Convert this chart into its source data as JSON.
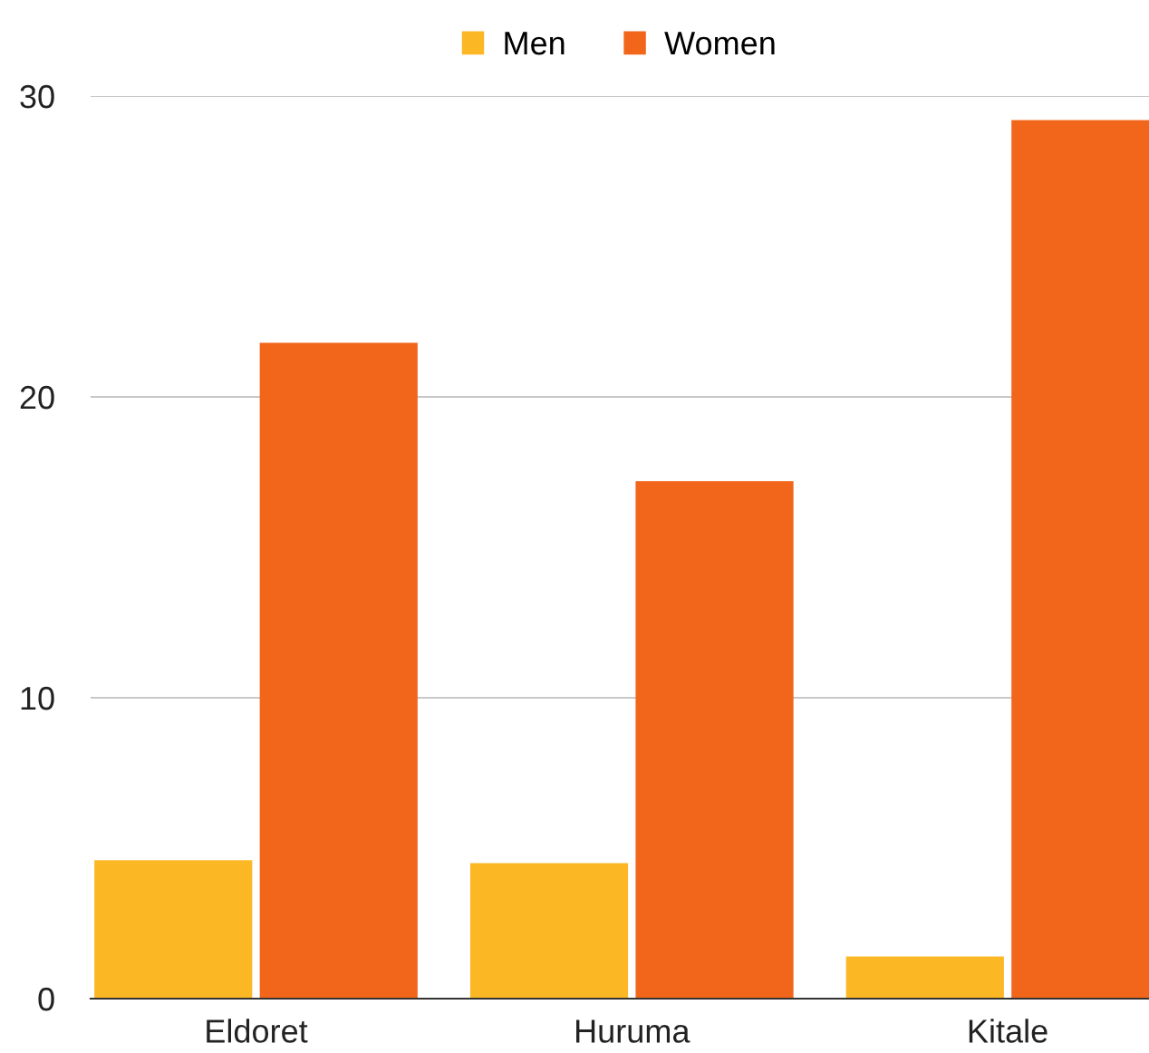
{
  "chart_data": {
    "type": "bar",
    "categories": [
      "Eldoret",
      "Huruma",
      "Kitale"
    ],
    "series": [
      {
        "name": "Men",
        "color": "#fbb724",
        "values": [
          4.6,
          4.5,
          1.4
        ]
      },
      {
        "name": "Women",
        "color": "#f2661b",
        "values": [
          21.8,
          17.2,
          29.2
        ]
      }
    ],
    "ylim": [
      0,
      30
    ],
    "yticks": [
      0,
      10,
      20,
      30
    ],
    "grid": "y",
    "legend": "top"
  }
}
